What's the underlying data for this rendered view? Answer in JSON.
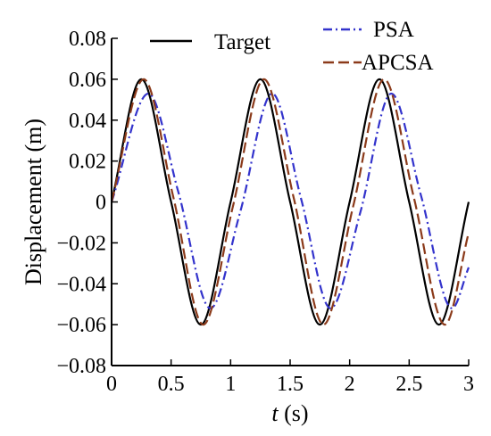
{
  "chart_data": {
    "type": "line",
    "xlabel": {
      "italic": "t",
      "rest": " (s)"
    },
    "ylabel": "Displacement (m)",
    "xlim": [
      0,
      3
    ],
    "ylim": [
      -0.08,
      0.08
    ],
    "x_ticks": [
      0,
      0.5,
      1,
      1.5,
      2,
      2.5,
      3
    ],
    "x_tick_labels": [
      "0",
      "0.5",
      "1",
      "1.5",
      "2",
      "2.5",
      "3"
    ],
    "y_ticks": [
      0.08,
      0.06,
      0.04,
      0.02,
      0,
      -0.02,
      -0.04,
      -0.06,
      -0.08
    ],
    "y_tick_labels": [
      "0.08",
      "0.06",
      "0.04",
      "0.02",
      "0",
      "−0.02",
      "−0.04",
      "−0.06",
      "−0.08"
    ],
    "grid": false,
    "legend": "top",
    "series": [
      {
        "name": "Target",
        "color": "#000000",
        "style": "solid",
        "x": [
          0,
          0.25,
          0.5,
          0.75,
          1.0,
          1.25,
          1.5,
          1.75,
          2.0,
          2.25,
          2.5,
          2.75,
          3.0
        ],
        "y": [
          0,
          0.06,
          0,
          -0.06,
          0,
          0.06,
          0,
          -0.06,
          0,
          0.06,
          0,
          -0.06,
          0
        ]
      },
      {
        "name": "PSA",
        "color": "#3333cc",
        "style": "dashdot",
        "x": [
          0,
          0.31,
          0.56,
          0.83,
          1.08,
          1.35,
          1.59,
          1.84,
          2.09,
          2.35,
          2.6,
          2.86,
          3.0
        ],
        "y": [
          0,
          0.053,
          0.005,
          -0.052,
          -0.005,
          0.053,
          0.002,
          -0.052,
          -0.005,
          0.053,
          0.003,
          -0.052,
          -0.032
        ]
      },
      {
        "name": "APCSA",
        "color": "#8b3a1a",
        "style": "dashed",
        "x": [
          0,
          0.27,
          0.52,
          0.77,
          1.02,
          1.28,
          1.53,
          1.78,
          2.03,
          2.29,
          2.54,
          2.8,
          3.0
        ],
        "y": [
          0,
          0.06,
          0.002,
          -0.06,
          -0.002,
          0.06,
          0.002,
          -0.06,
          -0.002,
          0.06,
          0.002,
          -0.06,
          -0.015
        ]
      }
    ]
  }
}
